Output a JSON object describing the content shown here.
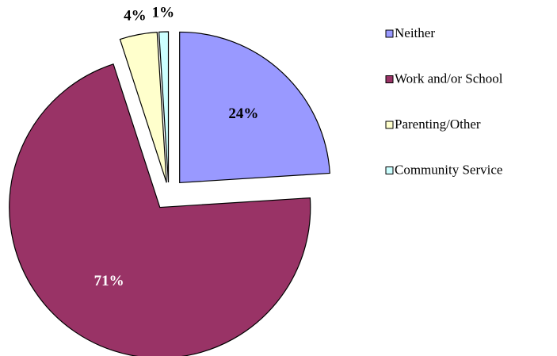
{
  "chart_data": {
    "type": "pie",
    "categories": [
      "Neither",
      "Work and/or School",
      "Parenting/Other",
      "Community Service"
    ],
    "values": [
      24,
      71,
      4,
      1
    ],
    "value_labels": [
      "24%",
      "71%",
      "4%",
      "1%"
    ],
    "colors": [
      "#9999ff",
      "#993366",
      "#ffffcc",
      "#ccffff"
    ],
    "legend": "right"
  }
}
